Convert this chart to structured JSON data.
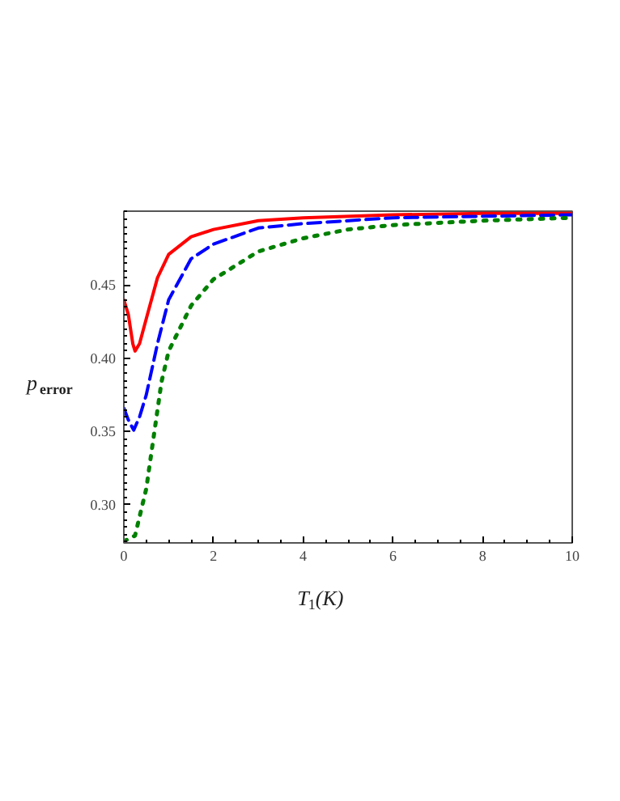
{
  "chart_data": {
    "type": "line",
    "xlabel": "T$_{1}$(K)",
    "ylabel": "p$_{error}$",
    "xlim": [
      0,
      10
    ],
    "ylim": [
      0.274,
      0.5005
    ],
    "xticks": [
      0,
      2,
      4,
      6,
      8,
      10
    ],
    "yticks": [
      {
        "value": 0.3,
        "label": "0.30"
      },
      {
        "value": 0.35,
        "label": "0.35"
      },
      {
        "value": 0.4,
        "label": "0.40"
      },
      {
        "value": 0.45,
        "label": "0.45"
      }
    ],
    "grid": false,
    "series": [
      {
        "color": "#ff0000",
        "line_style": "solid",
        "x": [
          0,
          0.1,
          0.2,
          0.25,
          0.35,
          0.5,
          0.75,
          1,
          1.5,
          2,
          3,
          4,
          6,
          8,
          10
        ],
        "values": [
          0.44,
          0.43,
          0.41,
          0.405,
          0.41,
          0.427,
          0.455,
          0.471,
          0.483,
          0.488,
          0.494,
          0.496,
          0.498,
          0.499,
          0.499
        ]
      },
      {
        "color": "#0000ff",
        "line_style": "dashed",
        "x": [
          0,
          0.1,
          0.22,
          0.35,
          0.5,
          0.75,
          1,
          1.5,
          2,
          3,
          4,
          6,
          8,
          10
        ],
        "values": [
          0.366,
          0.358,
          0.351,
          0.36,
          0.375,
          0.41,
          0.44,
          0.468,
          0.478,
          0.489,
          0.492,
          0.496,
          0.497,
          0.498
        ]
      },
      {
        "color": "#008000",
        "line_style": "dotted",
        "x": [
          0,
          0.25,
          0.5,
          0.84,
          1,
          1.5,
          2,
          3,
          4,
          5,
          6,
          8,
          10
        ],
        "values": [
          0.275,
          0.279,
          0.311,
          0.384,
          0.405,
          0.436,
          0.454,
          0.473,
          0.482,
          0.488,
          0.491,
          0.494,
          0.496
        ]
      }
    ]
  }
}
